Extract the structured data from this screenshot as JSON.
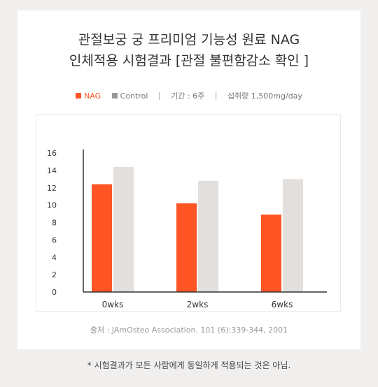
{
  "header": {
    "title_line1": "관절보궁 궁 프리미엄 기능성 원료 NAG",
    "title_line2": "인체적용 시험결과 [관절 불편함감소 확인 ]"
  },
  "legend": {
    "nag_label": "NAG",
    "control_label": "Control",
    "separator": "|",
    "period": "기간 : 6주",
    "dose": "섭취량 1,500mg/day"
  },
  "chart_data": {
    "type": "bar",
    "categories": [
      "0wks",
      "2wks",
      "6wks"
    ],
    "series": [
      {
        "name": "NAG",
        "values": [
          12.4,
          10.2,
          8.9
        ],
        "color": "#ff5424"
      },
      {
        "name": "Control",
        "values": [
          14.4,
          12.8,
          13.0
        ],
        "color": "#e2dfdc"
      }
    ],
    "title": "",
    "xlabel": "",
    "ylabel": "",
    "ylim": [
      0,
      16
    ],
    "yticks": [
      "0",
      "2",
      "4",
      "6",
      "8",
      "10",
      "12",
      "14",
      "16"
    ],
    "grid": false,
    "legend_position": "top"
  },
  "source": "출처 : JAmOsteo Association. 101 (6):339-344, 2001",
  "footnote": "* 시험결과가 모든 사람에게 동일하게 적용되는 것은 아님."
}
